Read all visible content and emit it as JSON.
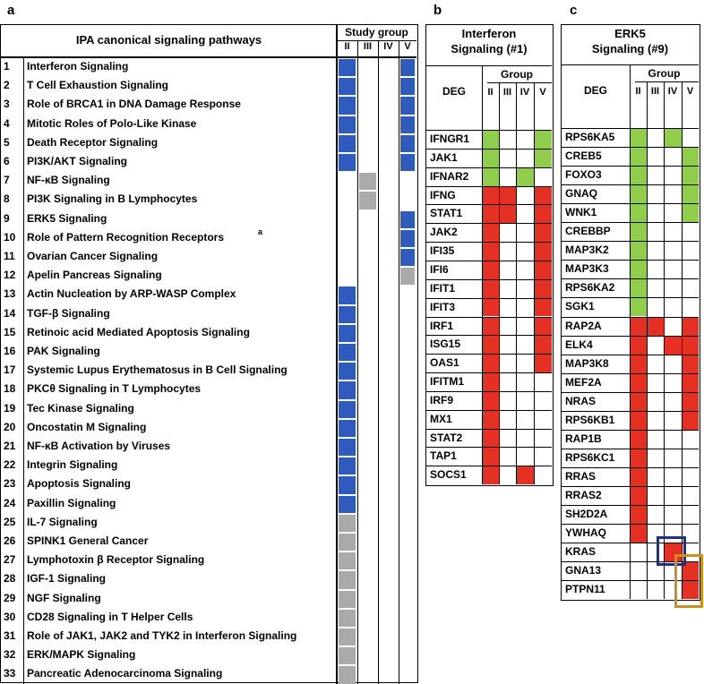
{
  "panels": {
    "a": "a",
    "b": "b",
    "c": "c"
  },
  "colors": {
    "blue": "#2f5bbd",
    "gray": "#aaaaaa",
    "green": "#8fcd4b",
    "red": "#e53024",
    "navy_box": "#1f2f86",
    "gold_box": "#c8921e"
  },
  "a": {
    "header_title": "IPA canonical signaling pathways",
    "study_group": "Study group",
    "groups": [
      "II",
      "III",
      "IV",
      "V"
    ],
    "rows": [
      {
        "n": "1",
        "name": "Interferon Signaling",
        "cells": [
          "blue",
          "",
          "",
          "blue"
        ]
      },
      {
        "n": "2",
        "name": "T Cell Exhaustion Signaling",
        "cells": [
          "blue",
          "",
          "",
          "blue"
        ]
      },
      {
        "n": "3",
        "name": "Role of BRCA1 in DNA Damage Response",
        "cells": [
          "blue",
          "",
          "",
          "blue"
        ]
      },
      {
        "n": "4",
        "name": "Mitotic Roles of Polo-Like Kinase",
        "cells": [
          "blue",
          "",
          "",
          "blue"
        ]
      },
      {
        "n": "5",
        "name": "Death Receptor Signaling",
        "cells": [
          "blue",
          "",
          "",
          "blue"
        ]
      },
      {
        "n": "6",
        "name": "PI3K/AKT Signaling",
        "cells": [
          "blue",
          "",
          "",
          "blue"
        ]
      },
      {
        "n": "7",
        "name": "NF-κB Signaling",
        "cells": [
          "",
          "gray",
          "",
          ""
        ]
      },
      {
        "n": "8",
        "name": "PI3K Signaling in B Lymphocytes",
        "cells": [
          "",
          "gray",
          "",
          ""
        ]
      },
      {
        "n": "9",
        "name": "ERK5 Signaling",
        "cells": [
          "",
          "",
          "",
          "blue"
        ]
      },
      {
        "n": "10",
        "name": "Role of Pattern Recognition Receptors",
        "sup": "a",
        "cells": [
          "",
          "",
          "",
          "blue"
        ]
      },
      {
        "n": "11",
        "name": "Ovarian Cancer Signaling",
        "cells": [
          "",
          "",
          "",
          "blue"
        ]
      },
      {
        "n": "12",
        "name": "Apelin Pancreas Signaling",
        "cells": [
          "",
          "",
          "",
          "gray"
        ]
      },
      {
        "n": "13",
        "name": "Actin Nucleation by ARP-WASP Complex",
        "cells": [
          "blue",
          "",
          "",
          ""
        ]
      },
      {
        "n": "14",
        "name": "TGF-β Signaling",
        "cells": [
          "blue",
          "",
          "",
          ""
        ]
      },
      {
        "n": "15",
        "name": "Retinoic acid Mediated Apoptosis Signaling",
        "cells": [
          "blue",
          "",
          "",
          ""
        ]
      },
      {
        "n": "16",
        "name": "PAK Signaling",
        "cells": [
          "blue",
          "",
          "",
          ""
        ]
      },
      {
        "n": "17",
        "name": "Systemic Lupus Erythematosus in B Cell Signaling",
        "cells": [
          "blue",
          "",
          "",
          ""
        ]
      },
      {
        "n": "18",
        "name": "PKCθ Signaling in T Lymphocytes",
        "cells": [
          "blue",
          "",
          "",
          ""
        ]
      },
      {
        "n": "19",
        "name": "Tec Kinase Signaling",
        "cells": [
          "blue",
          "",
          "",
          ""
        ]
      },
      {
        "n": "20",
        "name": "Oncostatin M Signaling",
        "cells": [
          "blue",
          "",
          "",
          ""
        ]
      },
      {
        "n": "21",
        "name": "NF-κB Activation by Viruses",
        "cells": [
          "blue",
          "",
          "",
          ""
        ]
      },
      {
        "n": "22",
        "name": "Integrin Signaling",
        "cells": [
          "blue",
          "",
          "",
          ""
        ]
      },
      {
        "n": "23",
        "name": "Apoptosis Signaling",
        "cells": [
          "blue",
          "",
          "",
          ""
        ]
      },
      {
        "n": "24",
        "name": "Paxillin Signaling",
        "cells": [
          "blue",
          "",
          "",
          ""
        ]
      },
      {
        "n": "25",
        "name": "IL-7 Signaling",
        "cells": [
          "gray",
          "",
          "",
          ""
        ]
      },
      {
        "n": "26",
        "name": "SPINK1 General Cancer",
        "cells": [
          "gray",
          "",
          "",
          ""
        ]
      },
      {
        "n": "27",
        "name": "Lymphotoxin β Receptor Signaling",
        "cells": [
          "gray",
          "",
          "",
          ""
        ]
      },
      {
        "n": "28",
        "name": "IGF-1 Signaling",
        "cells": [
          "gray",
          "",
          "",
          ""
        ]
      },
      {
        "n": "29",
        "name": "NGF Signaling",
        "cells": [
          "gray",
          "",
          "",
          ""
        ]
      },
      {
        "n": "30",
        "name": "CD28 Signaling in T Helper Cells",
        "cells": [
          "gray",
          "",
          "",
          ""
        ]
      },
      {
        "n": "31",
        "name": "Role of JAK1, JAK2 and TYK2 in Interferon Signaling",
        "cells": [
          "gray",
          "",
          "",
          ""
        ]
      },
      {
        "n": "32",
        "name": "ERK/MAPK Signaling",
        "cells": [
          "gray",
          "",
          "",
          ""
        ]
      },
      {
        "n": "33",
        "name": "Pancreatic Adenocarcinoma Signaling",
        "cells": [
          "gray",
          "",
          "",
          ""
        ]
      }
    ]
  },
  "b": {
    "title_line1": "Interferon",
    "title_line2": "Signaling (#1)",
    "deg": "DEG",
    "group": "Group",
    "groups": [
      "II",
      "III",
      "IV",
      "V"
    ],
    "rows": [
      {
        "gene": "IFNGR1",
        "cells": [
          "green",
          "",
          "",
          "green"
        ]
      },
      {
        "gene": "JAK1",
        "cells": [
          "green",
          "",
          "",
          "green"
        ]
      },
      {
        "gene": "IFNAR2",
        "cells": [
          "green",
          "",
          "green",
          ""
        ]
      },
      {
        "gene": "IFNG",
        "cells": [
          "red",
          "red",
          "",
          "red"
        ]
      },
      {
        "gene": "STAT1",
        "cells": [
          "red",
          "red",
          "",
          "red"
        ]
      },
      {
        "gene": "JAK2",
        "cells": [
          "red",
          "",
          "",
          "red"
        ]
      },
      {
        "gene": "IFI35",
        "cells": [
          "red",
          "",
          "",
          "red"
        ]
      },
      {
        "gene": "IFI6",
        "cells": [
          "red",
          "",
          "",
          "red"
        ]
      },
      {
        "gene": "IFIT1",
        "cells": [
          "red",
          "",
          "",
          "red"
        ]
      },
      {
        "gene": "IFIT3",
        "cells": [
          "red",
          "",
          "",
          "red"
        ]
      },
      {
        "gene": "IRF1",
        "cells": [
          "red",
          "",
          "",
          "red"
        ]
      },
      {
        "gene": "ISG15",
        "cells": [
          "red",
          "",
          "",
          "red"
        ]
      },
      {
        "gene": "OAS1",
        "cells": [
          "red",
          "",
          "",
          "red"
        ]
      },
      {
        "gene": "IFITM1",
        "cells": [
          "red",
          "",
          "",
          ""
        ]
      },
      {
        "gene": "IRF9",
        "cells": [
          "red",
          "",
          "",
          ""
        ]
      },
      {
        "gene": "MX1",
        "cells": [
          "red",
          "",
          "",
          ""
        ]
      },
      {
        "gene": "STAT2",
        "cells": [
          "red",
          "",
          "",
          ""
        ]
      },
      {
        "gene": "TAP1",
        "cells": [
          "red",
          "",
          "",
          ""
        ]
      },
      {
        "gene": "SOCS1",
        "cells": [
          "red",
          "",
          "red",
          ""
        ]
      }
    ]
  },
  "c": {
    "title_line1": "ERK5",
    "title_line2": "Signaling (#9)",
    "deg": "DEG",
    "group": "Group",
    "groups": [
      "II",
      "III",
      "IV",
      "V"
    ],
    "rows": [
      {
        "gene": "RPS6KA5",
        "cells": [
          "green",
          "",
          "green",
          ""
        ]
      },
      {
        "gene": "CREB5",
        "cells": [
          "green",
          "",
          "",
          "green"
        ]
      },
      {
        "gene": "FOXO3",
        "cells": [
          "green",
          "",
          "",
          "green"
        ]
      },
      {
        "gene": "GNAQ",
        "cells": [
          "green",
          "",
          "",
          "green"
        ]
      },
      {
        "gene": "WNK1",
        "cells": [
          "green",
          "",
          "",
          "green"
        ]
      },
      {
        "gene": "CREBBP",
        "cells": [
          "green",
          "",
          "",
          ""
        ]
      },
      {
        "gene": "MAP3K2",
        "cells": [
          "green",
          "",
          "",
          ""
        ]
      },
      {
        "gene": "MAP3K3",
        "cells": [
          "green",
          "",
          "",
          ""
        ]
      },
      {
        "gene": "RPS6KA2",
        "cells": [
          "green",
          "",
          "",
          ""
        ]
      },
      {
        "gene": "SGK1",
        "cells": [
          "green",
          "",
          "",
          ""
        ]
      },
      {
        "gene": "RAP2A",
        "cells": [
          "red",
          "red",
          "",
          "red"
        ]
      },
      {
        "gene": "ELK4",
        "cells": [
          "red",
          "",
          "red",
          "red"
        ]
      },
      {
        "gene": "MAP3K8",
        "cells": [
          "red",
          "",
          "",
          "red"
        ]
      },
      {
        "gene": "MEF2A",
        "cells": [
          "red",
          "",
          "",
          "red"
        ]
      },
      {
        "gene": "NRAS",
        "cells": [
          "red",
          "",
          "",
          "red"
        ]
      },
      {
        "gene": "RPS6KB1",
        "cells": [
          "red",
          "",
          "",
          "red"
        ]
      },
      {
        "gene": "RAP1B",
        "cells": [
          "red",
          "",
          "",
          ""
        ]
      },
      {
        "gene": "RPS6KC1",
        "cells": [
          "red",
          "",
          "",
          ""
        ]
      },
      {
        "gene": "RRAS",
        "cells": [
          "red",
          "",
          "",
          ""
        ]
      },
      {
        "gene": "RRAS2",
        "cells": [
          "red",
          "",
          "",
          ""
        ]
      },
      {
        "gene": "SH2D2A",
        "cells": [
          "red",
          "",
          "",
          ""
        ]
      },
      {
        "gene": "YWHAQ",
        "cells": [
          "red",
          "",
          "",
          ""
        ]
      },
      {
        "gene": "KRAS",
        "cells": [
          "",
          "",
          "red",
          ""
        ]
      },
      {
        "gene": "GNA13",
        "cells": [
          "",
          "",
          "",
          "red"
        ]
      },
      {
        "gene": "PTPN11",
        "cells": [
          "",
          "",
          "",
          "red"
        ]
      }
    ]
  }
}
